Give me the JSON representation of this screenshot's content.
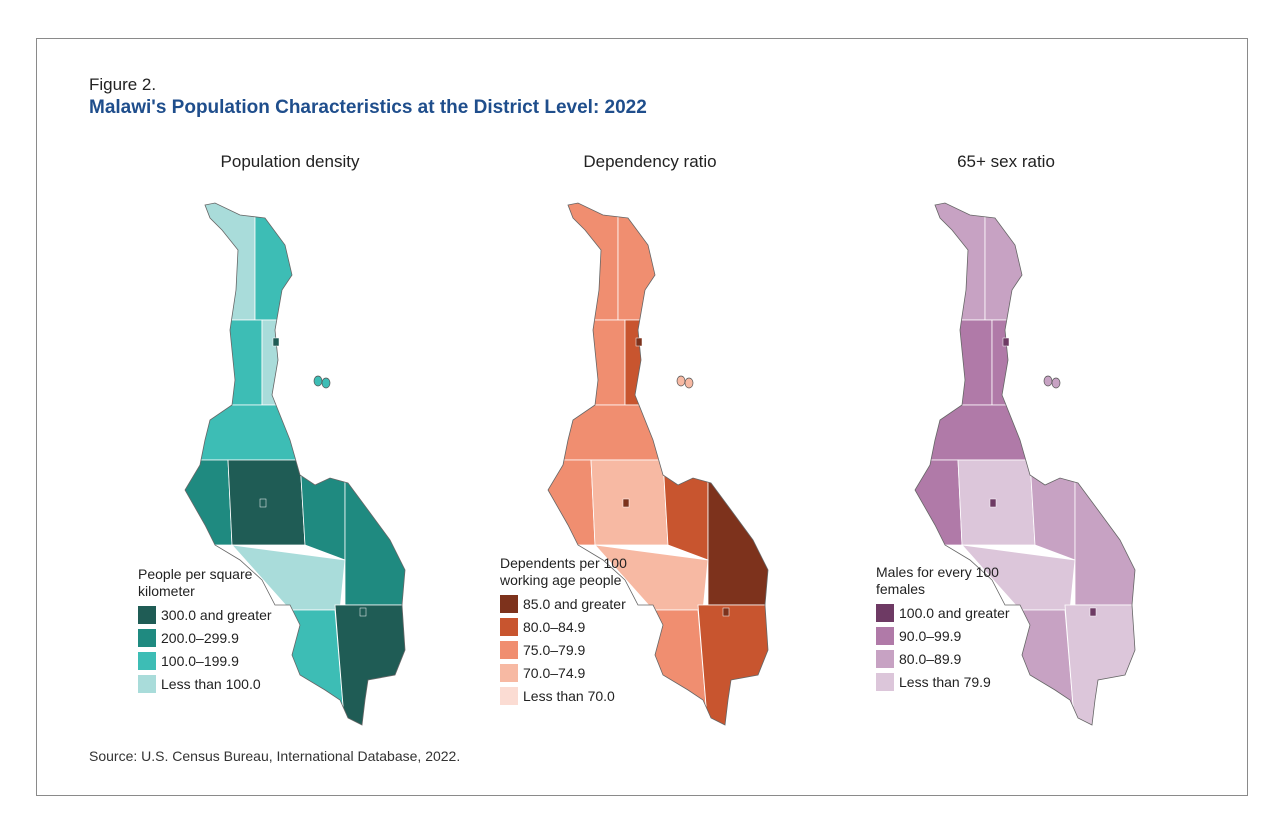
{
  "figure_label": "Figure 2.",
  "title": "Malawi's Population Characteristics at the District Level: 2022",
  "source": "Source: U.S. Census Bureau, International Database, 2022.",
  "maps": [
    {
      "title": "Population density",
      "legend_title": "People per square kilometer",
      "classes": [
        "300.0 and greater",
        "200.0–299.9",
        "100.0–199.9",
        "Less than 100.0"
      ],
      "colors": [
        "#1f5c55",
        "#1f8a80",
        "#3dbdb5",
        "#a9dcda"
      ],
      "zone_classes": [
        3,
        2,
        2,
        3,
        2,
        1,
        0,
        1,
        1,
        3,
        2,
        0
      ]
    },
    {
      "title": "Dependency ratio",
      "legend_title": "Dependents per 100 working age people",
      "classes": [
        "85.0 and greater",
        "80.0–84.9",
        "75.0–79.9",
        "70.0–74.9",
        "Less than 70.0"
      ],
      "colors": [
        "#7d321c",
        "#c8552f",
        "#f08e70",
        "#f7b9a3",
        "#fbdcd3"
      ],
      "zone_classes": [
        2,
        2,
        2,
        1,
        2,
        2,
        3,
        1,
        0,
        3,
        2,
        1
      ]
    },
    {
      "title": "65+ sex ratio",
      "legend_title": "Males for every 100 females",
      "classes": [
        "100.0 and greater",
        "90.0–99.9",
        "80.0–89.9",
        "Less than 79.9"
      ],
      "colors": [
        "#6e3a64",
        "#b07aa8",
        "#c7a2c3",
        "#dcc6da"
      ],
      "zone_classes": [
        2,
        2,
        1,
        1,
        1,
        1,
        3,
        2,
        2,
        3,
        2,
        3
      ]
    }
  ]
}
